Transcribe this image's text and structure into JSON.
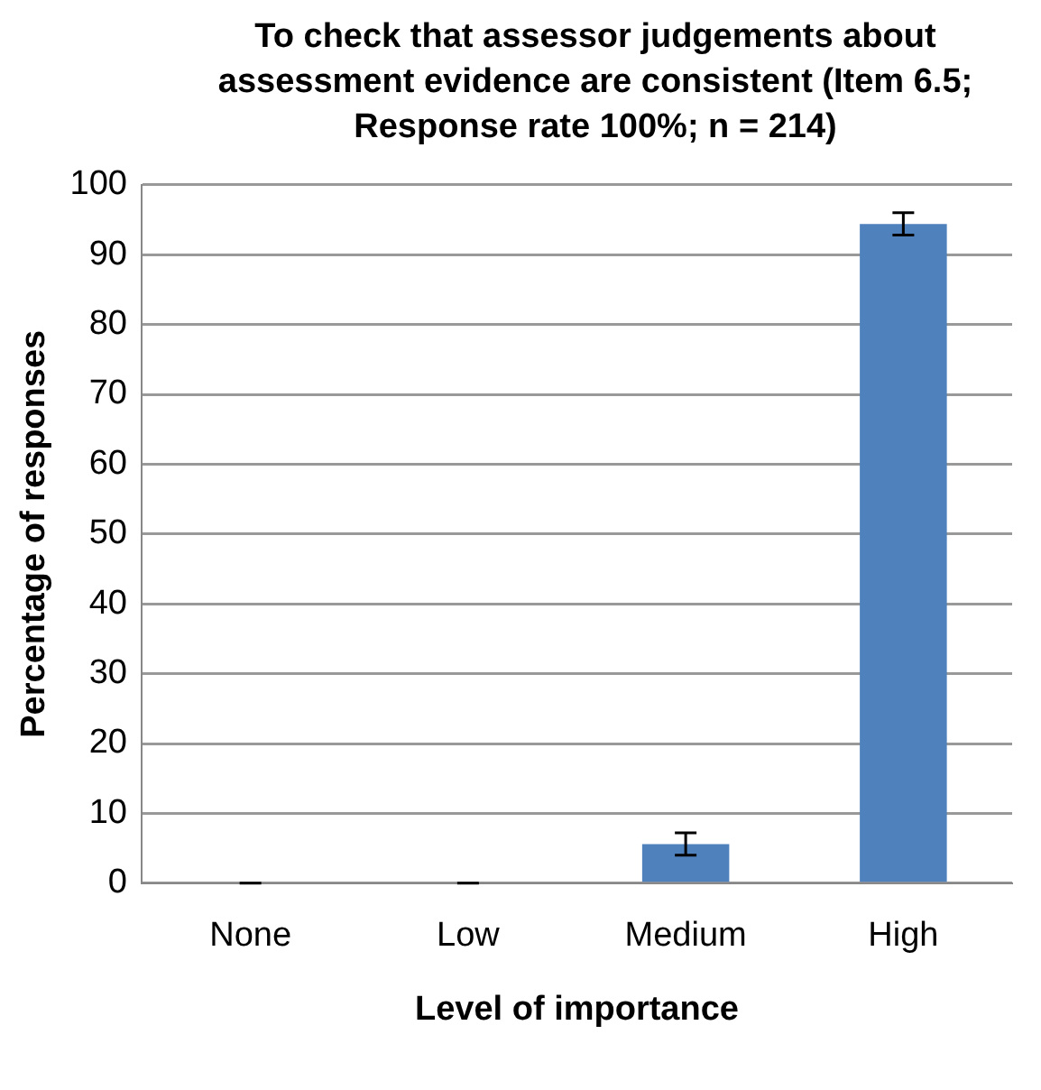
{
  "chart_data": {
    "type": "bar",
    "title": "To check that assessor judgements about assessment evidence are consistent  (Item 6.5; Response rate 100%; n = 214)",
    "xlabel": "Level of importance",
    "ylabel": "Percentage of responses",
    "categories": [
      "None",
      "Low",
      "Medium",
      "High"
    ],
    "values": [
      0,
      0,
      5.6,
      94.4
    ],
    "errors": [
      0,
      0,
      1.6,
      1.6
    ],
    "color": "#4f81bd",
    "ylim": [
      0,
      100
    ],
    "yticks": [
      0,
      10,
      20,
      30,
      40,
      50,
      60,
      70,
      80,
      90,
      100
    ],
    "grid": "y",
    "legend": false
  }
}
